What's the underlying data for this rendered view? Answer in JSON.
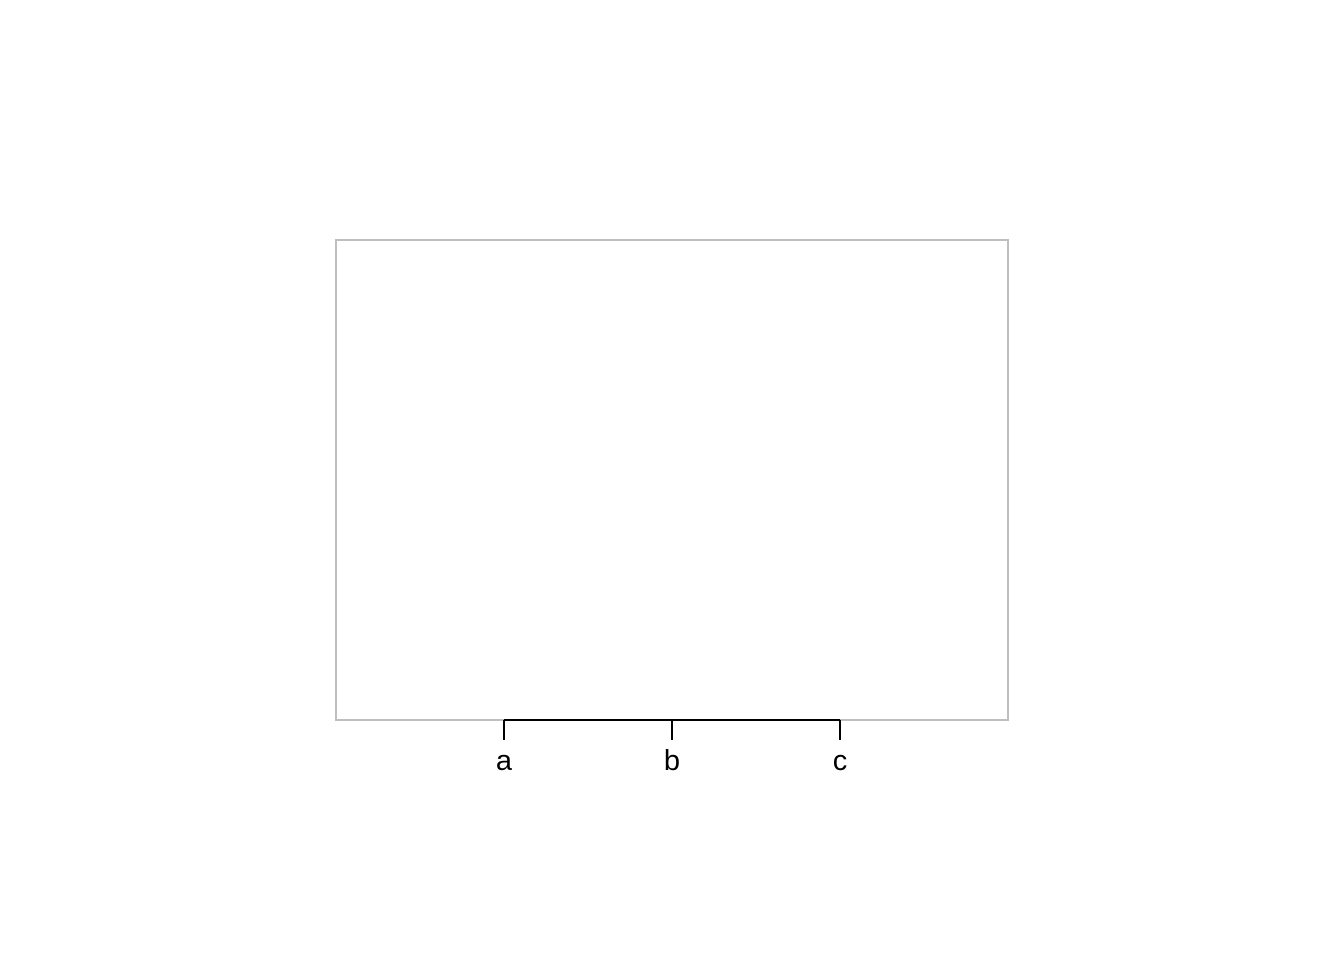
{
  "chart_data": {
    "type": "bar",
    "categories": [
      "a",
      "b",
      "c"
    ],
    "series": [],
    "title": "",
    "xlabel": "",
    "ylabel": "",
    "grid": false,
    "legend": "none",
    "colors": {
      "panel_border": "#bfbfbf",
      "axis": "#000000",
      "text": "#000000",
      "background": "#ffffff"
    }
  }
}
